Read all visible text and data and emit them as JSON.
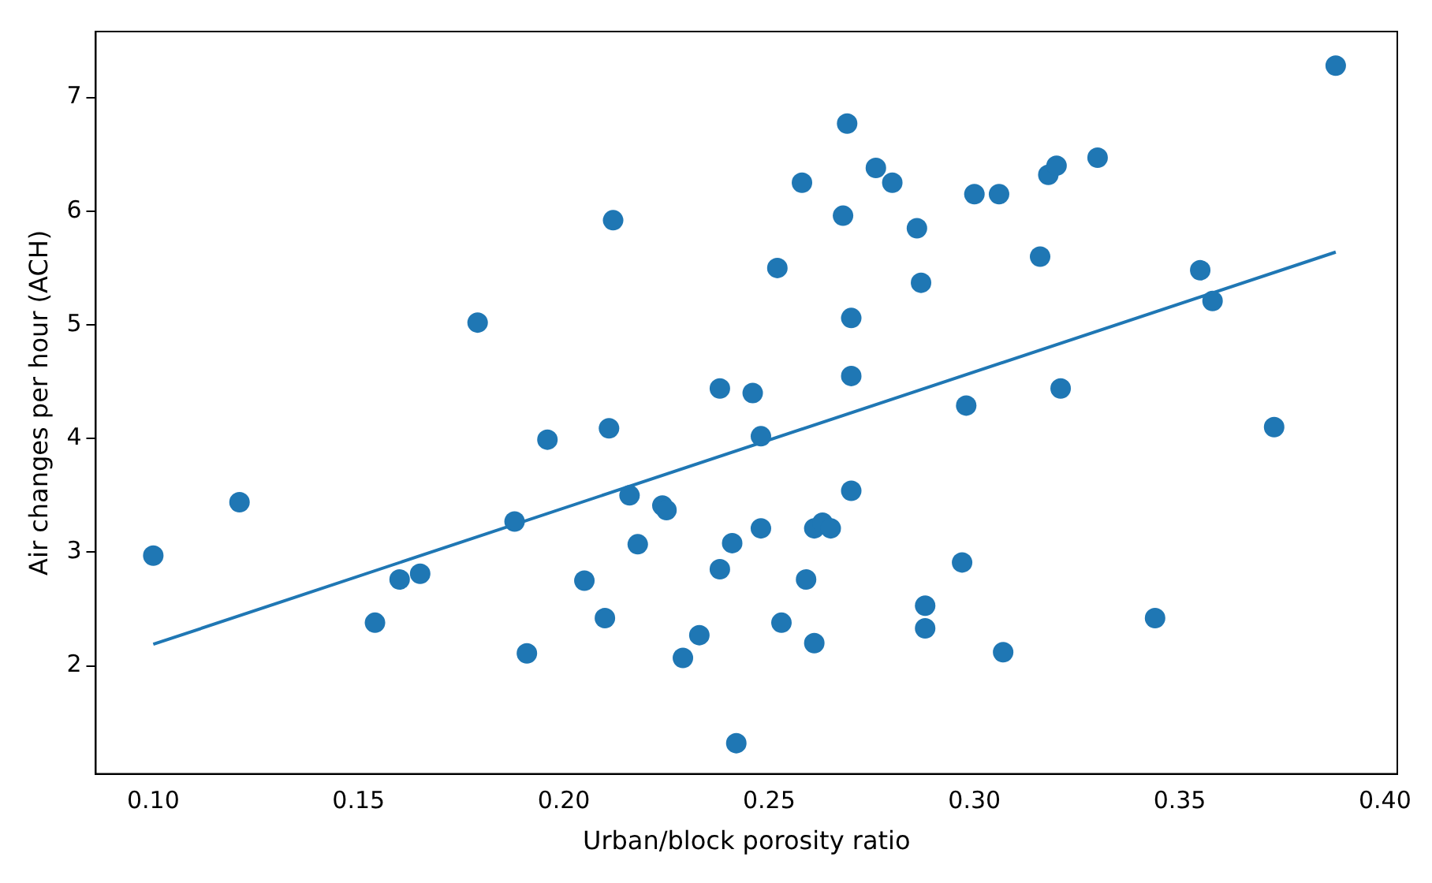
{
  "chart_data": {
    "type": "scatter",
    "xlabel": "Urban/block porosity ratio",
    "ylabel": "Air changes per hour (ACH)",
    "xlim": [
      0.086,
      0.403
    ],
    "ylim": [
      1.05,
      7.58
    ],
    "xticks": [
      {
        "value": 0.1,
        "label": "0.10"
      },
      {
        "value": 0.15,
        "label": "0.15"
      },
      {
        "value": 0.2,
        "label": "0.20"
      },
      {
        "value": 0.25,
        "label": "0.25"
      },
      {
        "value": 0.3,
        "label": "0.30"
      },
      {
        "value": 0.35,
        "label": "0.35"
      },
      {
        "value": 0.4,
        "label": "0.40"
      }
    ],
    "yticks": [
      2,
      3,
      4,
      5,
      6,
      7
    ],
    "grid": false,
    "legend": false,
    "series": [
      {
        "marker": "circle",
        "color": "#1f77b4",
        "x": [
          0.1,
          0.121,
          0.154,
          0.16,
          0.165,
          0.179,
          0.188,
          0.191,
          0.196,
          0.205,
          0.21,
          0.211,
          0.212,
          0.216,
          0.218,
          0.224,
          0.225,
          0.229,
          0.233,
          0.238,
          0.238,
          0.241,
          0.242,
          0.246,
          0.248,
          0.248,
          0.252,
          0.253,
          0.258,
          0.259,
          0.261,
          0.261,
          0.263,
          0.265,
          0.268,
          0.269,
          0.27,
          0.27,
          0.27,
          0.276,
          0.28,
          0.286,
          0.287,
          0.288,
          0.288,
          0.297,
          0.298,
          0.3,
          0.306,
          0.307,
          0.316,
          0.318,
          0.32,
          0.321,
          0.33,
          0.344,
          0.355,
          0.358,
          0.373,
          0.388
        ],
        "values": [
          2.97,
          3.44,
          2.38,
          2.76,
          2.81,
          5.02,
          3.27,
          2.11,
          3.99,
          2.75,
          2.42,
          4.09,
          5.92,
          3.5,
          3.07,
          3.41,
          3.37,
          2.07,
          2.27,
          4.44,
          2.85,
          3.08,
          1.32,
          4.4,
          4.02,
          3.21,
          5.5,
          2.38,
          6.25,
          2.76,
          2.2,
          3.21,
          3.26,
          3.21,
          5.96,
          6.77,
          5.06,
          4.55,
          3.54,
          6.38,
          6.25,
          5.85,
          5.37,
          2.53,
          2.33,
          2.91,
          4.29,
          6.15,
          6.15,
          2.12,
          5.6,
          6.32,
          6.4,
          4.44,
          6.47,
          2.42,
          5.48,
          5.21,
          4.1,
          7.28
        ]
      },
      {
        "type": "line",
        "color": "#1f77b4",
        "x": [
          0.1,
          0.388
        ],
        "values": [
          2.19,
          5.64
        ]
      }
    ]
  }
}
